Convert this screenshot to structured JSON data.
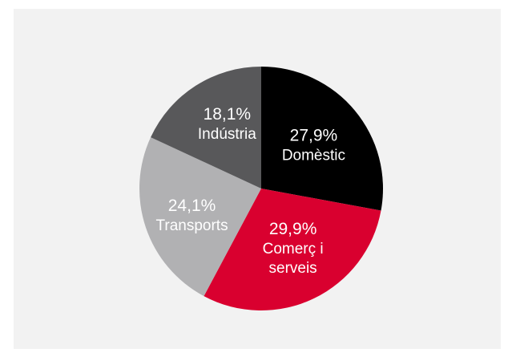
{
  "chart_data": {
    "type": "pie",
    "title": "",
    "slices": [
      {
        "label": "Domèstic",
        "label_lines": [
          "Domèstic"
        ],
        "value": 27.9,
        "value_label": "27,9%",
        "color": "#000000"
      },
      {
        "label": "Comerç i serveis",
        "label_lines": [
          "Comerç i",
          "serveis"
        ],
        "value": 29.9,
        "value_label": "29,9%",
        "color": "#d9002f"
      },
      {
        "label": "Transports",
        "label_lines": [
          "Transports"
        ],
        "value": 24.1,
        "value_label": "24,1%",
        "color": "#b1b1b3"
      },
      {
        "label": "Indústria",
        "label_lines": [
          "Indústria"
        ],
        "value": 18.1,
        "value_label": "18,1%",
        "color": "#58585a"
      }
    ],
    "start_position": "top (12 o'clock)",
    "direction": "clockwise",
    "legend": "none",
    "background_color": "#f2f2f2"
  }
}
